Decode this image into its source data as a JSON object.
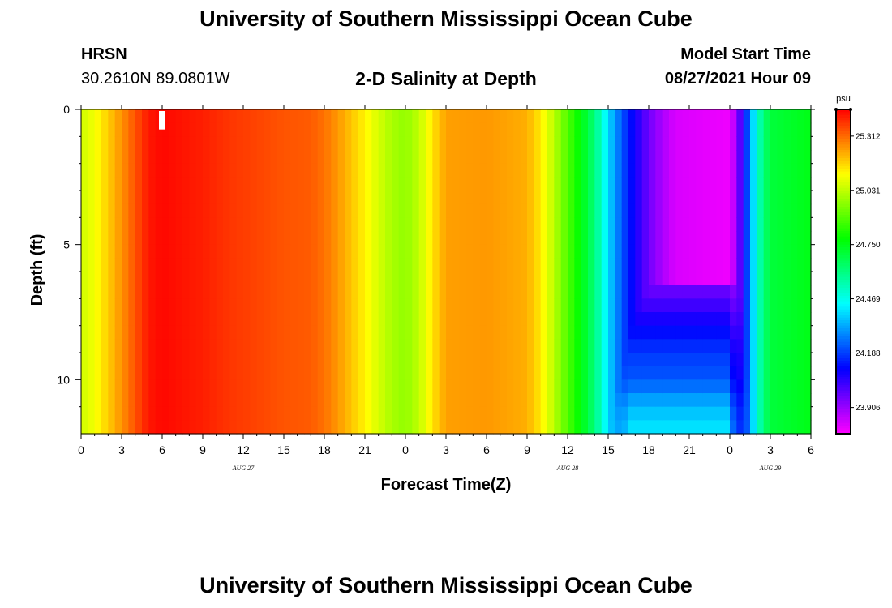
{
  "header": {
    "title": "University of Southern Mississippi Ocean Cube",
    "station": "HRSN",
    "coordinates": "30.2610N  89.0801W",
    "model_start_label": "Model Start Time",
    "model_start_value": "08/27/2021 Hour 09"
  },
  "footer": {
    "title": "University of Southern Mississippi Ocean Cube"
  },
  "chart_data": {
    "type": "heatmap",
    "title": "2-D Salinity at Depth",
    "xlabel": "Forecast Time(Z)",
    "ylabel": "Depth (ft)",
    "x_range_hours": [
      0,
      54
    ],
    "y_range_ft": [
      0,
      12
    ],
    "x_ticks": [
      "0",
      "3",
      "6",
      "9",
      "12",
      "15",
      "18",
      "21",
      "0",
      "3",
      "6",
      "9",
      "12",
      "15",
      "18",
      "21",
      "0",
      "3",
      "6"
    ],
    "y_ticks": [
      "0",
      "5",
      "10"
    ],
    "y_tick_values": [
      0,
      5,
      10
    ],
    "date_labels": [
      {
        "text": "AUG  27",
        "hour": 12
      },
      {
        "text": "AUG  28",
        "hour": 36
      },
      {
        "text": "AUG  29",
        "hour": 51
      }
    ],
    "colorbar": {
      "unit": "psu",
      "min": 23.77,
      "max": 25.45,
      "ticks": [
        "25.312",
        "25.031",
        "24.750",
        "24.469",
        "24.188",
        "23.906"
      ]
    },
    "surface_profile": [
      {
        "t": 0,
        "v": 25.05
      },
      {
        "t": 1,
        "v": 25.1
      },
      {
        "t": 2,
        "v": 25.18
      },
      {
        "t": 3,
        "v": 25.26
      },
      {
        "t": 4,
        "v": 25.34
      },
      {
        "t": 5,
        "v": 25.42
      },
      {
        "t": 6,
        "v": 25.44
      },
      {
        "t": 7,
        "v": 25.43
      },
      {
        "t": 9,
        "v": 25.41
      },
      {
        "t": 11,
        "v": 25.38
      },
      {
        "t": 13,
        "v": 25.36
      },
      {
        "t": 15,
        "v": 25.34
      },
      {
        "t": 17,
        "v": 25.33
      },
      {
        "t": 18,
        "v": 25.3
      },
      {
        "t": 19,
        "v": 25.25
      },
      {
        "t": 20,
        "v": 25.19
      },
      {
        "t": 21,
        "v": 25.13
      },
      {
        "t": 22,
        "v": 25.06
      },
      {
        "t": 23,
        "v": 25.0
      },
      {
        "t": 24,
        "v": 24.97
      },
      {
        "t": 25,
        "v": 25.03
      },
      {
        "t": 26,
        "v": 25.15
      },
      {
        "t": 27,
        "v": 25.24
      },
      {
        "t": 30,
        "v": 25.25
      },
      {
        "t": 33,
        "v": 25.22
      },
      {
        "t": 34,
        "v": 25.14
      },
      {
        "t": 35,
        "v": 25.02
      },
      {
        "t": 36,
        "v": 24.88
      },
      {
        "t": 37,
        "v": 24.76
      },
      {
        "t": 38,
        "v": 24.62
      },
      {
        "t": 39,
        "v": 24.4
      },
      {
        "t": 40,
        "v": 24.22
      },
      {
        "t": 41,
        "v": 24.08
      },
      {
        "t": 42,
        "v": 23.96
      },
      {
        "t": 43,
        "v": 23.88
      },
      {
        "t": 44,
        "v": 23.82
      },
      {
        "t": 48,
        "v": 23.79
      },
      {
        "t": 48.5,
        "v": 23.9
      },
      {
        "t": 49,
        "v": 24.08
      },
      {
        "t": 49.5,
        "v": 24.3
      },
      {
        "t": 50,
        "v": 24.5
      },
      {
        "t": 50.5,
        "v": 24.62
      },
      {
        "t": 51,
        "v": 24.7
      },
      {
        "t": 54,
        "v": 24.75
      }
    ],
    "deep_layer": {
      "start_hour": 39,
      "end_hour": 49.5,
      "depth_ft": [
        6.5,
        8,
        9,
        10,
        11,
        12
      ],
      "values": [
        23.95,
        24.1,
        24.18,
        24.22,
        24.35,
        24.42
      ]
    },
    "white_marker": {
      "hour": 6,
      "depth_ft": [
        0,
        0.5
      ]
    }
  }
}
